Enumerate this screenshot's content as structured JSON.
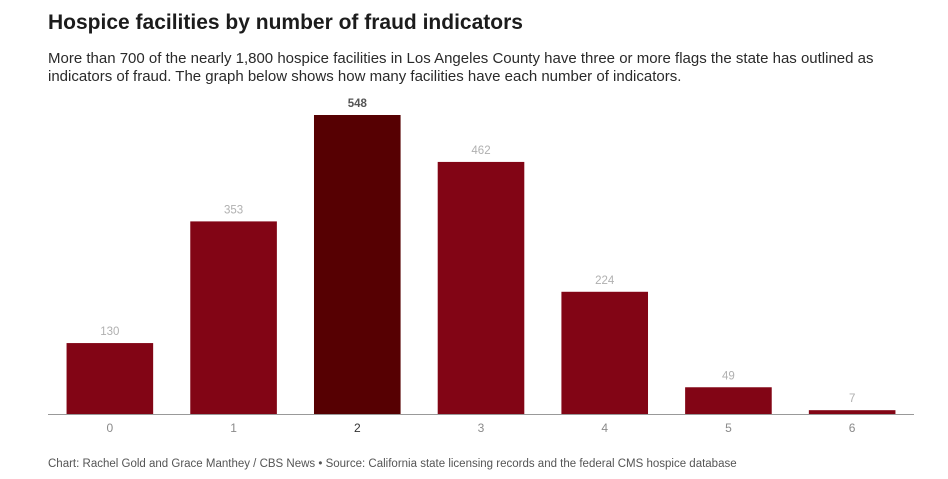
{
  "header": {
    "title": "Hospice facilities by number of fraud indicators",
    "subtitle": "More than 700 of the nearly 1,800 hospice facilities in Los Angeles County have three or more flags the state has outlined as indicators of fraud. The graph below shows how many facilities have each number of indicators."
  },
  "chart_data": {
    "type": "bar",
    "title": "Hospice facilities by number of fraud indicators",
    "xlabel": "",
    "ylabel": "",
    "categories": [
      "0",
      "1",
      "2",
      "3",
      "4",
      "5",
      "6"
    ],
    "values": [
      130,
      353,
      548,
      462,
      224,
      49,
      7
    ],
    "highlight_index": 2,
    "ylim": [
      0,
      548
    ],
    "grid": false,
    "legend": "none",
    "colors": {
      "bar": "#820515",
      "highlight": "#560002",
      "label": "#b0b0b0",
      "highlight_label": "#555555",
      "axis": "#999999"
    }
  },
  "footer": {
    "source": "Chart: Rachel Gold and Grace Manthey / CBS News • Source: California state licensing records and the federal CMS hospice database"
  }
}
